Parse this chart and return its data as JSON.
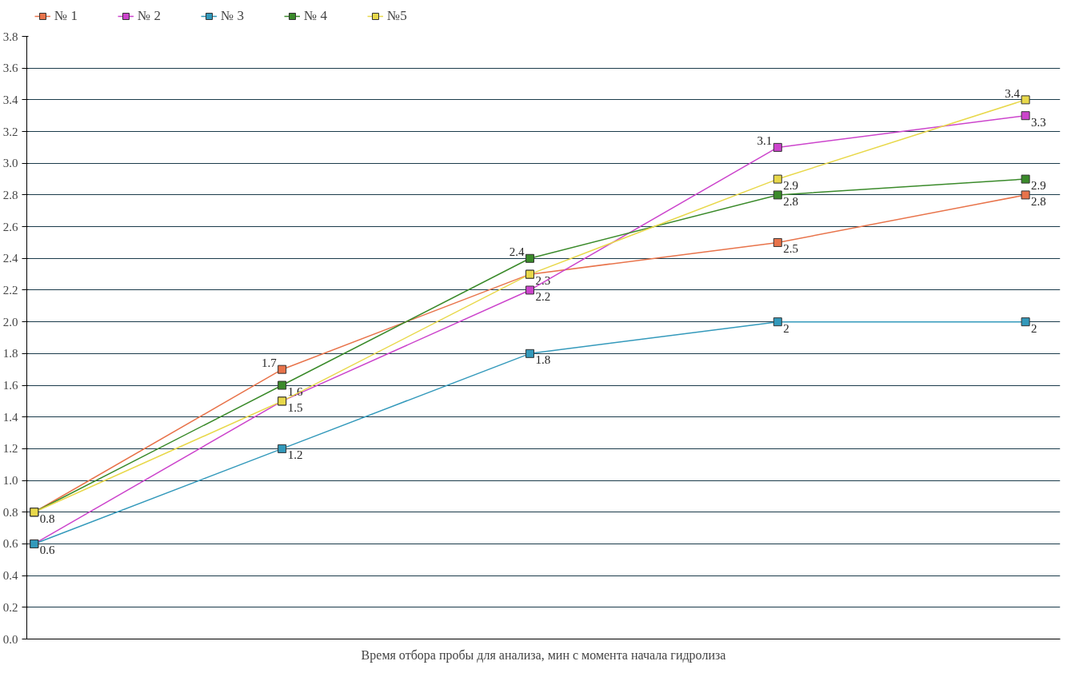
{
  "chart_data": {
    "type": "line",
    "xlabel": "Время отбора пробы для анализа, мин с момента начала гидролиза",
    "categories": [
      null,
      null,
      null,
      null,
      null
    ],
    "series": [
      {
        "name": "№ 1",
        "color": "#e8734a",
        "values": [
          0.8,
          1.7,
          2.3,
          2.5,
          2.8
        ],
        "value_labels": [
          "0.8",
          "1.7",
          "2.3",
          "2.5",
          "2.8"
        ]
      },
      {
        "name": "№ 2",
        "color": "#cc44cc",
        "values": [
          0.6,
          1.5,
          2.2,
          3.1,
          3.3
        ],
        "value_labels": [
          "0.6",
          "1.5",
          "2.2",
          "3.1",
          "3.3"
        ]
      },
      {
        "name": "№ 3",
        "color": "#3399bb",
        "values": [
          0.6,
          1.2,
          1.8,
          2.0,
          2.0
        ],
        "value_labels": [
          null,
          "1.2",
          "1.8",
          "2",
          "2"
        ]
      },
      {
        "name": "№ 4",
        "color": "#3a8a2a",
        "values": [
          0.8,
          1.6,
          2.4,
          2.8,
          2.9
        ],
        "value_labels": [
          null,
          "1.6",
          "2.4",
          "2.8",
          "2.9"
        ]
      },
      {
        "name": "№5",
        "color": "#e8d84a",
        "values": [
          0.8,
          1.5,
          2.3,
          2.9,
          3.4
        ],
        "value_labels": [
          null,
          null,
          null,
          "2.9",
          "3.4"
        ]
      }
    ],
    "ylim": [
      0,
      3.8
    ],
    "yticks": [
      {
        "value": 0,
        "label": "0.0"
      },
      0.2,
      0.4,
      0.6,
      0.8,
      {
        "value": 1,
        "label": "1.0"
      },
      1.2,
      1.4,
      1.6,
      1.8,
      {
        "value": 2,
        "label": "2.0"
      },
      2.2,
      2.4,
      2.6,
      2.8,
      {
        "value": 3,
        "label": "3.0"
      },
      3.2,
      3.4,
      3.6,
      3.8
    ],
    "grid": "y",
    "legend": "top left",
    "marker": "square",
    "line_style": "solid"
  }
}
